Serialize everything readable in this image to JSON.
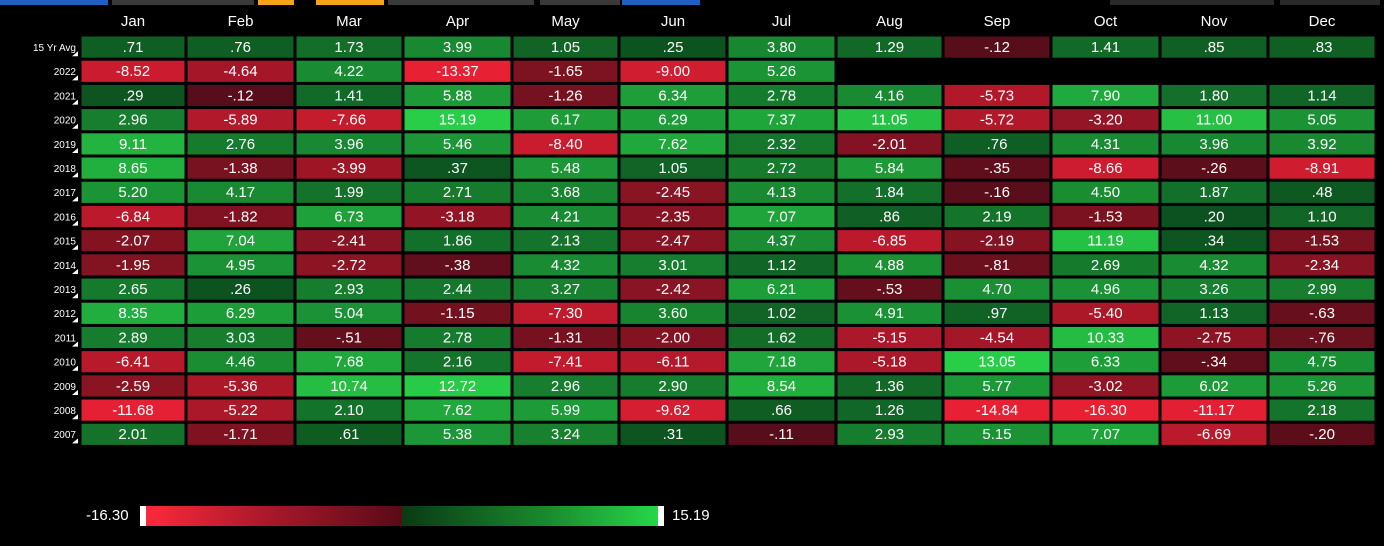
{
  "chart_data": {
    "type": "heatmap",
    "columns": [
      "Jan",
      "Feb",
      "Mar",
      "Apr",
      "May",
      "Jun",
      "Jul",
      "Aug",
      "Sep",
      "Oct",
      "Nov",
      "Dec"
    ],
    "rows": [
      {
        "label": "15 Yr Avg",
        "values": [
          ".71",
          ".76",
          "1.73",
          "3.99",
          "1.05",
          ".25",
          "3.80",
          "1.29",
          "-.12",
          "1.41",
          ".85",
          ".83"
        ]
      },
      {
        "label": "2022",
        "values": [
          "-8.52",
          "-4.64",
          "4.22",
          "-13.37",
          "-1.65",
          "-9.00",
          "5.26",
          "",
          "",
          "",
          "",
          ""
        ]
      },
      {
        "label": "2021",
        "values": [
          ".29",
          "-.12",
          "1.41",
          "5.88",
          "-1.26",
          "6.34",
          "2.78",
          "4.16",
          "-5.73",
          "7.90",
          "1.80",
          "1.14"
        ]
      },
      {
        "label": "2020",
        "values": [
          "2.96",
          "-5.89",
          "-7.66",
          "15.19",
          "6.17",
          "6.29",
          "7.37",
          "11.05",
          "-5.72",
          "-3.20",
          "11.00",
          "5.05"
        ]
      },
      {
        "label": "2019",
        "values": [
          "9.11",
          "2.76",
          "3.96",
          "5.46",
          "-8.40",
          "7.62",
          "2.32",
          "-2.01",
          ".76",
          "4.31",
          "3.96",
          "3.92"
        ]
      },
      {
        "label": "2018",
        "values": [
          "8.65",
          "-1.38",
          "-3.99",
          ".37",
          "5.48",
          "1.05",
          "2.72",
          "5.84",
          "-.35",
          "-8.66",
          "-.26",
          "-8.91"
        ]
      },
      {
        "label": "2017",
        "values": [
          "5.20",
          "4.17",
          "1.99",
          "2.71",
          "3.68",
          "-2.45",
          "4.13",
          "1.84",
          "-.16",
          "4.50",
          "1.87",
          ".48"
        ]
      },
      {
        "label": "2016",
        "values": [
          "-6.84",
          "-1.82",
          "6.73",
          "-3.18",
          "4.21",
          "-2.35",
          "7.07",
          ".86",
          "2.19",
          "-1.53",
          ".20",
          "1.10"
        ]
      },
      {
        "label": "2015",
        "values": [
          "-2.07",
          "7.04",
          "-2.41",
          "1.86",
          "2.13",
          "-2.47",
          "4.37",
          "-6.85",
          "-2.19",
          "11.19",
          ".34",
          "-1.53"
        ]
      },
      {
        "label": "2014",
        "values": [
          "-1.95",
          "4.95",
          "-2.72",
          "-.38",
          "4.32",
          "3.01",
          "1.12",
          "4.88",
          "-.81",
          "2.69",
          "4.32",
          "-2.34"
        ]
      },
      {
        "label": "2013",
        "values": [
          "2.65",
          ".26",
          "2.93",
          "2.44",
          "3.27",
          "-2.42",
          "6.21",
          "-.53",
          "4.70",
          "4.96",
          "3.26",
          "2.99"
        ]
      },
      {
        "label": "2012",
        "values": [
          "8.35",
          "6.29",
          "5.04",
          "-1.15",
          "-7.30",
          "3.60",
          "1.02",
          "4.91",
          ".97",
          "-5.40",
          "1.13",
          "-.63"
        ]
      },
      {
        "label": "2011",
        "values": [
          "2.89",
          "3.03",
          "-.51",
          "2.78",
          "-1.31",
          "-2.00",
          "1.62",
          "-5.15",
          "-4.54",
          "10.33",
          "-2.75",
          "-.76"
        ]
      },
      {
        "label": "2010",
        "values": [
          "-6.41",
          "4.46",
          "7.68",
          "2.16",
          "-7.41",
          "-6.11",
          "7.18",
          "-5.18",
          "13.05",
          "6.33",
          "-.34",
          "4.75"
        ]
      },
      {
        "label": "2009",
        "values": [
          "-2.59",
          "-5.36",
          "10.74",
          "12.72",
          "2.96",
          "2.90",
          "8.54",
          "1.36",
          "5.77",
          "-3.02",
          "6.02",
          "5.26"
        ]
      },
      {
        "label": "2008",
        "values": [
          "-11.68",
          "-5.22",
          "2.10",
          "7.62",
          "5.99",
          "-9.62",
          ".66",
          "1.26",
          "-14.84",
          "-16.30",
          "-11.17",
          "2.18"
        ]
      },
      {
        "label": "2007",
        "values": [
          "2.01",
          "-1.71",
          ".61",
          "5.38",
          "3.24",
          ".31",
          "-.11",
          "2.93",
          "5.15",
          "7.07",
          "-6.69",
          "-.20"
        ]
      }
    ],
    "color_scale": {
      "min": -16.3,
      "max": 15.19,
      "min_label": "-16.30",
      "max_label": "15.19",
      "negative_color": "#ff2a3c",
      "positive_color": "#27d94a"
    }
  },
  "colors": {
    "background": "#000000",
    "text": "#ffffff",
    "accent_orange": "#f5a31a",
    "accent_blue": "#1f5fbf"
  }
}
